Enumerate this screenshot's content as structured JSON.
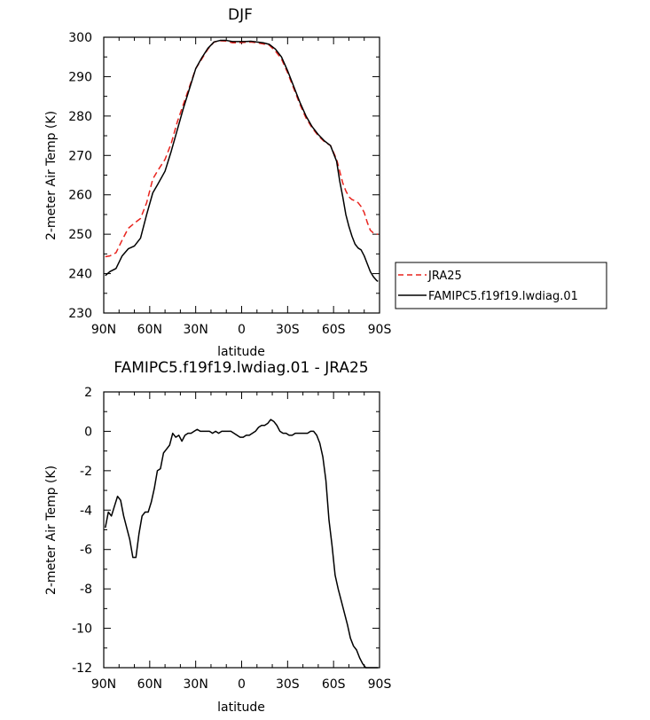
{
  "colors": {
    "series_obs": "#e8241e",
    "series_model": "#000000",
    "axis": "#000000"
  },
  "chart_data": [
    {
      "type": "line",
      "title": "DJF",
      "xlabel": "latitude",
      "ylabel": "2-meter Air Temp (K)",
      "xlim": [
        90,
        -90
      ],
      "ylim": [
        230,
        300
      ],
      "xticks": [
        90,
        60,
        30,
        0,
        -30,
        -60,
        -90
      ],
      "xtick_labels": [
        "90N",
        "60N",
        "30N",
        "0",
        "30S",
        "60S",
        "90S"
      ],
      "yticks": [
        230,
        240,
        250,
        260,
        270,
        280,
        290,
        300
      ],
      "ytick_labels": [
        "230",
        "240",
        "250",
        "260",
        "270",
        "280",
        "290",
        "300"
      ],
      "legend": {
        "placement": "right",
        "entries": [
          "JRA25",
          "FAMIPC5.f19f19.lwdiag.01"
        ]
      },
      "series": [
        {
          "name": "JRA25",
          "style": "dashed",
          "color": "#e8241e",
          "x": [
            89,
            86,
            82,
            78,
            74,
            70,
            66,
            62,
            58,
            55,
            50,
            46,
            42,
            38,
            34,
            30,
            26,
            22,
            18,
            14,
            10,
            6,
            2,
            -2,
            -6,
            -10,
            -14,
            -18,
            -22,
            -26,
            -30,
            -34,
            -38,
            -42,
            -46,
            -50,
            -54,
            -58,
            -62,
            -64,
            -66,
            -68,
            -70,
            -72,
            -74,
            -76,
            -78,
            -80,
            -82,
            -84,
            -86,
            -88,
            -89
          ],
          "y": [
            244.3,
            244.5,
            245.3,
            248.5,
            251.5,
            252.8,
            254.0,
            258.0,
            264.0,
            266.0,
            269.0,
            273.0,
            278.5,
            283.0,
            287.5,
            292.0,
            294.5,
            297.0,
            298.8,
            299.1,
            299.0,
            298.6,
            298.6,
            298.7,
            298.8,
            298.6,
            298.3,
            298.0,
            296.5,
            294.5,
            291.0,
            287.0,
            283.0,
            279.5,
            277.0,
            275.0,
            273.5,
            272.5,
            269.0,
            266.0,
            263.0,
            261.0,
            259.5,
            258.8,
            258.5,
            258.0,
            257.0,
            255.5,
            253.0,
            251.0,
            250.3,
            250.0,
            250.0
          ]
        },
        {
          "name": "FAMIPC5.f19f19.lwdiag.01",
          "style": "solid",
          "color": "#000000",
          "x": [
            89,
            86,
            82,
            78,
            74,
            70,
            66,
            62,
            58,
            55,
            50,
            46,
            42,
            38,
            34,
            30,
            26,
            22,
            18,
            14,
            10,
            6,
            2,
            -2,
            -6,
            -10,
            -14,
            -18,
            -22,
            -26,
            -30,
            -34,
            -38,
            -42,
            -46,
            -50,
            -54,
            -58,
            -62,
            -64,
            -66,
            -68,
            -70,
            -72,
            -74,
            -76,
            -78,
            -80,
            -82,
            -84,
            -86,
            -88,
            -89
          ],
          "y": [
            239.5,
            240.5,
            241.3,
            244.5,
            246.3,
            247.0,
            249.0,
            255.0,
            260.5,
            262.5,
            266.0,
            271.0,
            276.5,
            282.0,
            287.0,
            292.0,
            294.8,
            297.2,
            298.8,
            299.2,
            299.2,
            298.9,
            298.9,
            298.9,
            299.0,
            298.8,
            298.6,
            298.2,
            297.0,
            295.0,
            291.5,
            287.5,
            283.5,
            280.0,
            277.3,
            275.3,
            273.7,
            272.5,
            268.5,
            263.5,
            259.5,
            255.0,
            252.0,
            249.5,
            247.5,
            246.5,
            246.0,
            244.5,
            242.5,
            240.5,
            239.2,
            238.3,
            238.0
          ]
        }
      ]
    },
    {
      "type": "line",
      "title": "FAMIPC5.f19f19.lwdiag.01 - JRA25",
      "xlabel": "latitude",
      "ylabel": "2-meter Air Temp (K)",
      "xlim": [
        90,
        -90
      ],
      "ylim": [
        -12,
        2
      ],
      "xticks": [
        90,
        60,
        30,
        0,
        -30,
        -60,
        -90
      ],
      "xtick_labels": [
        "90N",
        "60N",
        "30N",
        "0",
        "30S",
        "60S",
        "90S"
      ],
      "yticks": [
        -12,
        -10,
        -8,
        -6,
        -4,
        -2,
        0,
        2
      ],
      "ytick_labels": [
        "-12",
        "-10",
        "-8",
        "-6",
        "-4",
        "-2",
        "0",
        "2"
      ],
      "series": [
        {
          "style": "solid",
          "color": "#000000",
          "x": [
            89,
            87,
            85,
            83,
            81,
            79,
            77,
            75,
            73,
            71,
            69,
            67,
            65,
            63,
            61,
            59,
            57,
            55,
            53,
            51,
            49,
            47,
            45,
            43,
            41,
            39,
            37,
            35,
            33,
            31,
            29,
            27,
            25,
            23,
            21,
            19,
            17,
            15,
            13,
            11,
            9,
            7,
            5,
            3,
            1,
            -1,
            -3,
            -5,
            -7,
            -9,
            -11,
            -13,
            -15,
            -17,
            -19,
            -21,
            -23,
            -25,
            -27,
            -29,
            -31,
            -33,
            -35,
            -37,
            -39,
            -41,
            -43,
            -45,
            -47,
            -49,
            -51,
            -53,
            -55,
            -57,
            -59,
            -61,
            -63,
            -65,
            -67,
            -69,
            -71,
            -73,
            -75,
            -77,
            -79,
            -81,
            -83,
            -85,
            -87,
            -89
          ],
          "y": [
            -4.9,
            -4.1,
            -4.3,
            -3.8,
            -3.3,
            -3.5,
            -4.3,
            -4.9,
            -5.5,
            -6.4,
            -6.4,
            -5.2,
            -4.3,
            -4.1,
            -4.1,
            -3.6,
            -2.9,
            -2.0,
            -1.9,
            -1.1,
            -0.9,
            -0.7,
            -0.1,
            -0.3,
            -0.2,
            -0.5,
            -0.2,
            -0.1,
            -0.1,
            0.0,
            0.1,
            0.0,
            0.0,
            0.0,
            0.0,
            -0.1,
            0.0,
            -0.1,
            0.0,
            0.0,
            0.0,
            0.0,
            -0.1,
            -0.2,
            -0.3,
            -0.3,
            -0.2,
            -0.2,
            -0.1,
            0.0,
            0.2,
            0.3,
            0.3,
            0.4,
            0.6,
            0.5,
            0.3,
            0.0,
            -0.1,
            -0.1,
            -0.2,
            -0.2,
            -0.1,
            -0.1,
            -0.1,
            -0.1,
            -0.1,
            0.0,
            0.0,
            -0.2,
            -0.6,
            -1.3,
            -2.5,
            -4.5,
            -5.8,
            -7.3,
            -8.0,
            -8.6,
            -9.2,
            -9.8,
            -10.5,
            -10.9,
            -11.1,
            -11.5,
            -11.8,
            -12.0,
            -12.0,
            -12.0,
            -12.0,
            -12.0
          ]
        }
      ]
    }
  ]
}
